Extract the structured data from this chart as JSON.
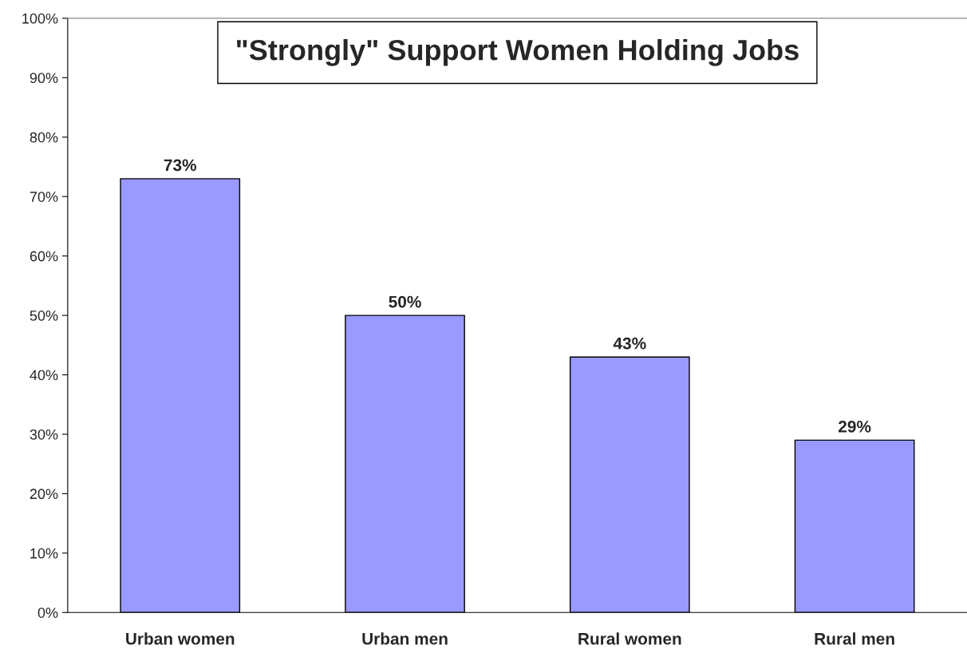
{
  "chart_data": {
    "type": "bar",
    "title": "\"Strongly\" Support Women Holding Jobs",
    "categories": [
      "Urban women",
      "Urban men",
      "Rural women",
      "Rural men"
    ],
    "values": [
      73,
      50,
      43,
      29
    ],
    "value_labels": [
      "73%",
      "50%",
      "43%",
      "29%"
    ],
    "color": "#9999ff",
    "ylim": [
      0,
      100
    ],
    "yticks": [
      {
        "value": 0,
        "label": "0%"
      },
      {
        "value": 10,
        "label": "10%"
      },
      {
        "value": 20,
        "label": "20%"
      },
      {
        "value": 30,
        "label": "30%"
      },
      {
        "value": 40,
        "label": "40%"
      },
      {
        "value": 50,
        "label": "50%"
      },
      {
        "value": 60,
        "label": "60%"
      },
      {
        "value": 70,
        "label": "70%"
      },
      {
        "value": 80,
        "label": "80%"
      },
      {
        "value": 90,
        "label": "90%"
      },
      {
        "value": 100,
        "label": "100%"
      }
    ],
    "grid": false,
    "legend": false
  }
}
